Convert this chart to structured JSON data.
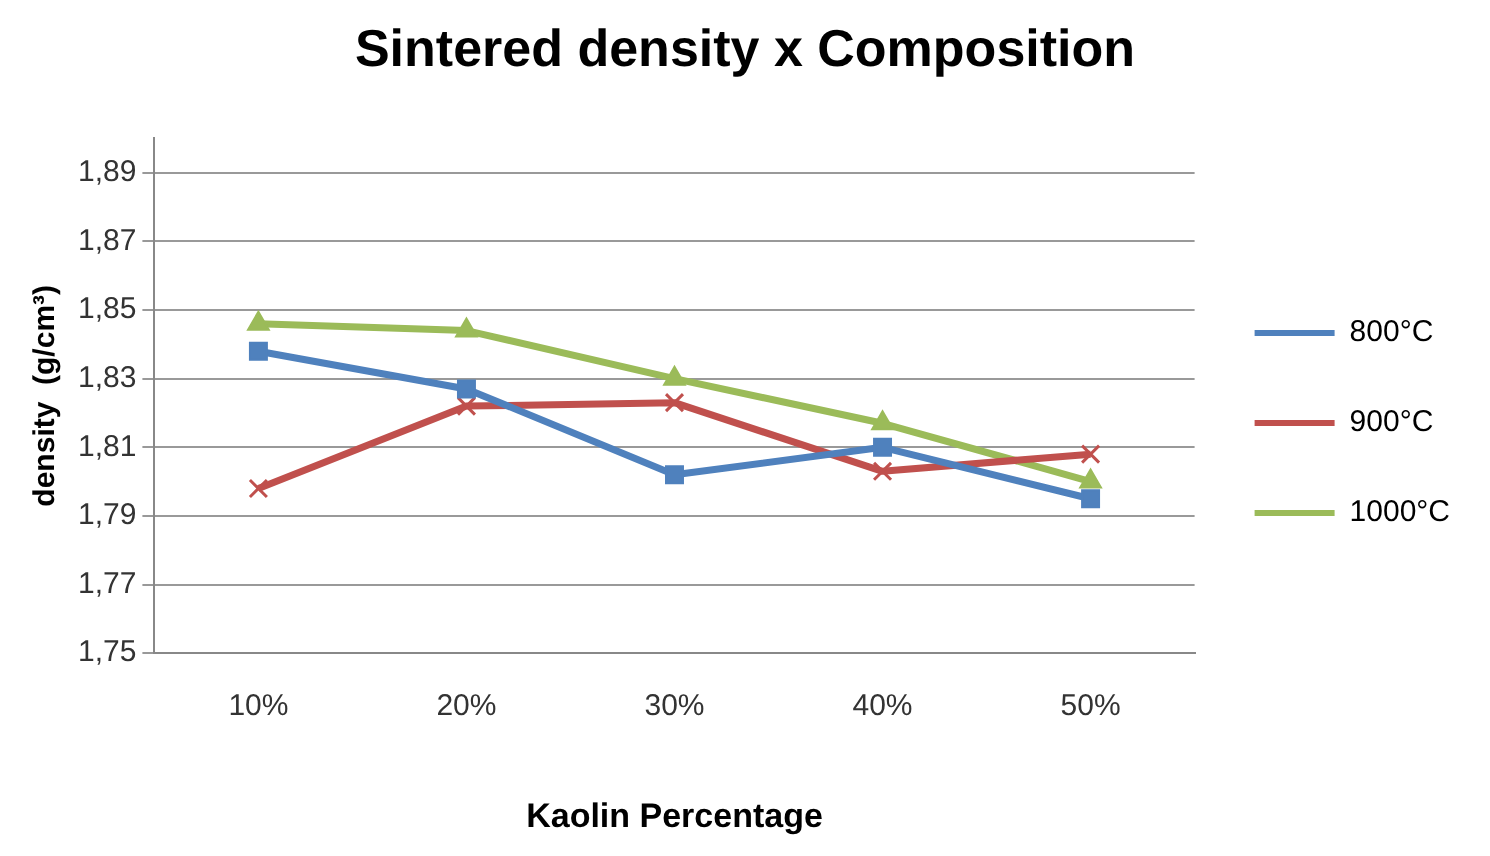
{
  "chart_data": {
    "type": "line",
    "title": "Sintered density x Composition",
    "xlabel": "Kaolin Percentage",
    "ylabel": "density  (g/cm³)",
    "categories": [
      "10%",
      "20%",
      "30%",
      "40%",
      "50%"
    ],
    "series": [
      {
        "name": "800°C",
        "color": "#4f81bd",
        "marker": "square",
        "values": [
          1.838,
          1.827,
          1.802,
          1.81,
          1.795
        ]
      },
      {
        "name": "900°C",
        "color": "#c0504d",
        "marker": "cross",
        "values": [
          1.798,
          1.822,
          1.823,
          1.803,
          1.808
        ]
      },
      {
        "name": "1000°C",
        "color": "#9bbb59",
        "marker": "triangle",
        "values": [
          1.846,
          1.844,
          1.83,
          1.817,
          1.8
        ]
      }
    ],
    "ylim": [
      1.75,
      1.9
    ],
    "yticks": [
      {
        "value": 1.75,
        "label": "1,75"
      },
      {
        "value": 1.77,
        "label": "1,77"
      },
      {
        "value": 1.79,
        "label": "1,79"
      },
      {
        "value": 1.81,
        "label": "1,81"
      },
      {
        "value": 1.83,
        "label": "1,83"
      },
      {
        "value": 1.85,
        "label": "1,85"
      },
      {
        "value": 1.87,
        "label": "1,87"
      },
      {
        "value": 1.89,
        "label": "1,89"
      }
    ],
    "grid": "y",
    "legend": "right"
  }
}
